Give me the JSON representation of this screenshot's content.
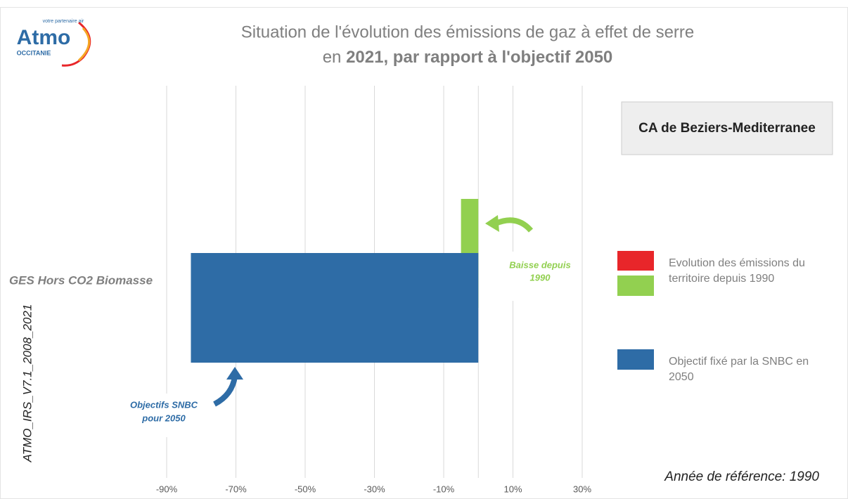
{
  "chart_data": {
    "type": "barh",
    "title": [
      "Situation de l'évolution des émissions de gaz à effet de serre",
      "en ",
      "2021, par rapport à l'objectif 2050"
    ],
    "territory": "CA de Beziers-Mediterranee",
    "categories": [
      "GES Hors CO2 Biomasse"
    ],
    "series": [
      {
        "name": "Evolution des émissions du territoire depuis 1990",
        "color": "#92d050",
        "increase_color": "#e8262a",
        "values": [
          -5
        ]
      },
      {
        "name": "Objectif fixé par la SNBC en 2050",
        "color": "#2e6ca6",
        "values": [
          -83
        ]
      }
    ],
    "xlim": [
      -90,
      30
    ],
    "xticks": [
      {
        "value": -90,
        "label": "-90%"
      },
      {
        "value": -70,
        "label": "-70%"
      },
      {
        "value": -50,
        "label": "-50%"
      },
      {
        "value": -30,
        "label": "-30%"
      },
      {
        "value": -10,
        "label": "-10%"
      },
      {
        "value": 10,
        "label": "10%"
      },
      {
        "value": 30,
        "label": "30%"
      }
    ],
    "grid": true,
    "annotations": [
      [
        "Baisse depuis",
        "1990"
      ],
      [
        "Objectifs SNBC",
        "pour 2050"
      ]
    ],
    "source": "ATMO_IRS_V7.1_2008_2021",
    "reference": "Année de référence: 1990",
    "logo": {
      "name": "Atmo",
      "region": "OCCITANIE",
      "tagline": "votre partenaire air"
    }
  }
}
